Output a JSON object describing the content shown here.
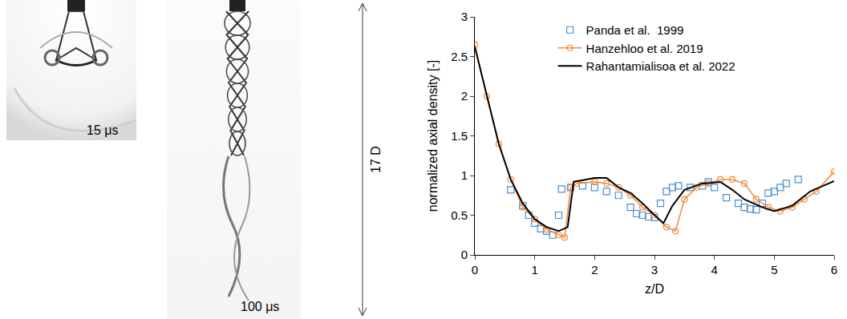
{
  "chart_data": {
    "type": "line",
    "x_label": "z/D",
    "y_label": "normalized axial density [-]",
    "xlim": [
      0,
      6
    ],
    "xticks": [
      0,
      1,
      2,
      3,
      4,
      5,
      6
    ],
    "ylim": [
      0,
      3
    ],
    "yticks": [
      0,
      0.5,
      1,
      1.5,
      2,
      2.5,
      3
    ],
    "grid": false,
    "legend": "top",
    "series": [
      {
        "name": "Panda et al.  1999",
        "color": "#4a8fd4",
        "type": "scatter",
        "marker": "square-open",
        "line_style": "none",
        "x": [
          0.6,
          0.8,
          0.9,
          1.0,
          1.1,
          1.2,
          1.3,
          1.4,
          1.45,
          1.6,
          1.8,
          2.0,
          2.2,
          2.4,
          2.6,
          2.7,
          2.8,
          2.9,
          3.0,
          3.1,
          3.2,
          3.3,
          3.4,
          3.6,
          3.8,
          3.9,
          4.0,
          4.2,
          4.4,
          4.5,
          4.6,
          4.7,
          4.8,
          4.9,
          5.0,
          5.1,
          5.2,
          5.4
        ],
        "values": [
          0.82,
          0.62,
          0.5,
          0.4,
          0.33,
          0.3,
          0.25,
          0.5,
          0.83,
          0.85,
          0.87,
          0.85,
          0.8,
          0.75,
          0.6,
          0.52,
          0.5,
          0.48,
          0.47,
          0.65,
          0.8,
          0.85,
          0.87,
          0.85,
          0.87,
          0.92,
          0.85,
          0.72,
          0.65,
          0.6,
          0.58,
          0.57,
          0.65,
          0.78,
          0.8,
          0.85,
          0.9,
          0.95
        ]
      },
      {
        "name": "Hanzehloo et al. 2019",
        "color": "#f08a3c",
        "type": "line",
        "marker": "circle-open",
        "line_style": "solid",
        "x": [
          0,
          0.2,
          0.4,
          0.6,
          0.8,
          1.0,
          1.2,
          1.4,
          1.5,
          1.6,
          1.7,
          2.0,
          2.2,
          2.4,
          2.6,
          2.8,
          3.0,
          3.2,
          3.35,
          3.5,
          3.7,
          3.9,
          4.1,
          4.3,
          4.5,
          4.7,
          4.9,
          5.1,
          5.3,
          5.5,
          5.7,
          6.0
        ],
        "values": [
          2.65,
          2.0,
          1.4,
          0.95,
          0.6,
          0.45,
          0.32,
          0.25,
          0.22,
          0.85,
          0.9,
          0.92,
          0.9,
          0.85,
          0.75,
          0.6,
          0.5,
          0.35,
          0.3,
          0.7,
          0.85,
          0.9,
          0.95,
          0.95,
          0.9,
          0.7,
          0.6,
          0.55,
          0.6,
          0.7,
          0.8,
          1.05
        ]
      },
      {
        "name": "Rahantamialisoa et al. 2022",
        "color": "#000000",
        "type": "line",
        "marker": "none",
        "line_style": "solid",
        "x": [
          0,
          0.2,
          0.4,
          0.6,
          0.8,
          1.0,
          1.2,
          1.4,
          1.55,
          1.65,
          2.0,
          2.2,
          2.4,
          2.6,
          2.8,
          3.0,
          3.15,
          3.3,
          3.5,
          3.8,
          4.1,
          4.3,
          4.5,
          4.8,
          5.0,
          5.3,
          5.6,
          6.0
        ],
        "values": [
          2.62,
          2.0,
          1.4,
          0.95,
          0.65,
          0.45,
          0.35,
          0.3,
          0.35,
          0.92,
          0.97,
          0.97,
          0.85,
          0.78,
          0.65,
          0.5,
          0.4,
          0.62,
          0.82,
          0.9,
          0.92,
          0.82,
          0.7,
          0.6,
          0.55,
          0.62,
          0.8,
          0.93
        ]
      }
    ]
  },
  "images": {
    "panels": [
      {
        "label": "15 μs"
      },
      {
        "label": "100 μs"
      }
    ],
    "dimension": "17 D"
  }
}
